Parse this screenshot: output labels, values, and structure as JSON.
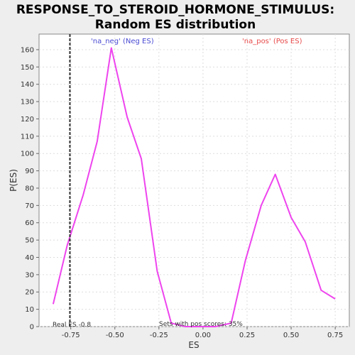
{
  "chart_data": {
    "type": "line",
    "title": "RESPONSE_TO_STEROID_HORMONE_STIMULUS:",
    "subtitle": "Random ES distribution",
    "xlabel": "ES",
    "ylabel": "P(ES)",
    "xlim": [
      -0.93,
      0.83
    ],
    "ylim": [
      0,
      169
    ],
    "x_ticks": [
      -0.75,
      -0.5,
      -0.25,
      0.0,
      0.25,
      0.5,
      0.75
    ],
    "x_tick_labels": [
      "-0.75",
      "-0.50",
      "-0.25",
      "0.00",
      "0.25",
      "0.50",
      "0.75"
    ],
    "y_ticks": [
      0,
      10,
      20,
      30,
      40,
      50,
      60,
      70,
      80,
      90,
      100,
      110,
      120,
      130,
      140,
      150,
      160
    ],
    "y_tick_labels": [
      "0",
      "10",
      "20",
      "30",
      "40",
      "50",
      "60",
      "70",
      "80",
      "90",
      "100",
      "110",
      "120",
      "130",
      "140",
      "150",
      "160"
    ],
    "grid": true,
    "series": [
      {
        "color": "#ee44ee",
        "points": [
          [
            -0.85,
            13
          ],
          [
            -0.77,
            47
          ],
          [
            -0.68,
            76
          ],
          [
            -0.6,
            107
          ],
          [
            -0.52,
            161
          ],
          [
            -0.43,
            121
          ],
          [
            -0.35,
            97
          ],
          [
            -0.26,
            32
          ],
          [
            -0.18,
            2
          ],
          [
            -0.1,
            0
          ],
          [
            -0.01,
            0
          ],
          [
            0.07,
            0
          ],
          [
            0.16,
            2
          ],
          [
            0.24,
            38
          ],
          [
            0.33,
            70
          ],
          [
            0.41,
            88
          ],
          [
            0.5,
            63
          ],
          [
            0.58,
            49
          ],
          [
            0.67,
            21
          ],
          [
            0.75,
            16
          ]
        ]
      }
    ],
    "real_es": {
      "x": -0.755,
      "label": "Real ES -0.8",
      "color": "#333333"
    },
    "legend": [
      {
        "label": "'na_neg' (Neg ES)",
        "color": "#4a4ad4",
        "placement": "top-left"
      },
      {
        "label": "'na_pos' (Pos ES)",
        "color": "#e84a4a",
        "placement": "top-right"
      }
    ],
    "annotation": "Sets with pos scores: 35%"
  }
}
